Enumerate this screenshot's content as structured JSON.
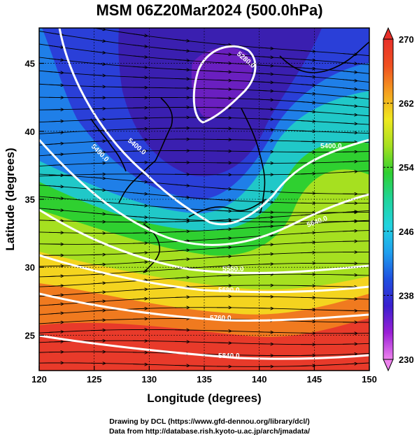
{
  "title": "MSM 06Z20Mar2024 (500.0hPa)",
  "xaxis": {
    "label": "Longitude (degrees)",
    "ticks": [
      "120",
      "125",
      "130",
      "135",
      "140",
      "145",
      "150"
    ],
    "range": [
      120,
      150
    ]
  },
  "yaxis": {
    "label": "Latitude  (degrees)",
    "ticks": [
      "25",
      "30",
      "35",
      "40",
      "45"
    ],
    "range": [
      22.4,
      47.6
    ]
  },
  "colorbar": {
    "ticks": [
      "270",
      "262",
      "254",
      "246",
      "238",
      "230"
    ],
    "range": [
      230,
      270
    ],
    "colors": [
      "#ee82ee",
      "#9b1fd6",
      "#3a1fcf",
      "#1f4fe0",
      "#1f9fee",
      "#22d3e0",
      "#20d49a",
      "#2fd030",
      "#a6e020",
      "#f0e81f",
      "#f4a01f",
      "#f05020",
      "#e8302a"
    ]
  },
  "contours": [
    {
      "label": "5280.0"
    },
    {
      "label": "5400.0"
    },
    {
      "label": "5490.0"
    },
    {
      "label": "5400.0"
    },
    {
      "label": "5640.0"
    },
    {
      "label": "5580.0"
    },
    {
      "label": "5690.0"
    },
    {
      "label": "5760.0"
    },
    {
      "label": "5840.0"
    }
  ],
  "credits": [
    "Drawing by DCL (https://www.gfd-dennou.org/library/dcl/)",
    "Data from http://database.rish.kyoto-u.ac.jp/arch/jmadata/"
  ]
}
